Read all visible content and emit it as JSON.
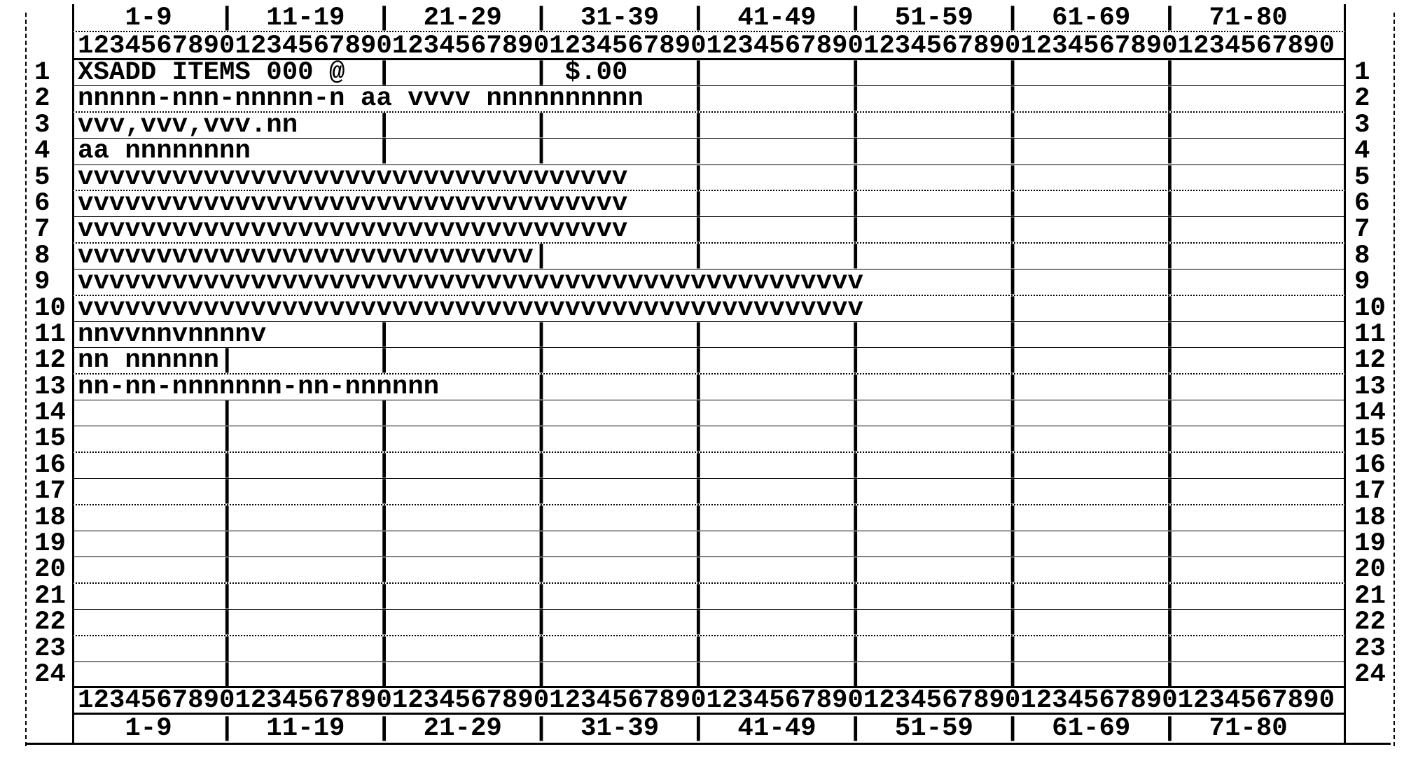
{
  "colors": {
    "ink": "#000000",
    "paper": "#ffffff"
  },
  "header": {
    "column_ranges": "   1-9   |  11-19  |  21-29  |  31-39  |  41-49  |  51-59  |  61-69  |  71-80   ",
    "ruler": "12345678901234567890123456789012345678901234567890123456789012345678901234567890"
  },
  "footer": {
    "ruler": "12345678901234567890123456789012345678901234567890123456789012345678901234567890",
    "column_ranges": "   1-9   |  11-19  |  21-29  |  31-39  |  41-49  |  51-59  |  61-69  |  71-80   "
  },
  "screen": {
    "rows": [
      {
        "num": "1",
        "text": "XSADD ITEMS 000 @  |         | $.00    |         |         |         |          "
      },
      {
        "num": "2",
        "text": "nnnnn-nnn-nnnnn-n aa vvvv nnnnnnnnnn   |         |         |         |          "
      },
      {
        "num": "3",
        "text": "vvv,vvv,vvv.nn     |         |         |         |         |         |          "
      },
      {
        "num": "4",
        "text": "aa nnnnnnnn        |         |         |         |         |         |          "
      },
      {
        "num": "5",
        "text": "vvvvvvvvvvvvvvvvvvvvvvvvvvvvvvvvvvv    |         |         |         |          "
      },
      {
        "num": "6",
        "text": "vvvvvvvvvvvvvvvvvvvvvvvvvvvvvvvvvvv    |         |         |         |          "
      },
      {
        "num": "7",
        "text": "vvvvvvvvvvvvvvvvvvvvvvvvvvvvvvvvvvv    |         |         |         |          "
      },
      {
        "num": "8",
        "text": "vvvvvvvvvvvvvvvvvvvvvvvvvvvvv|         |         |         |         |          "
      },
      {
        "num": "9",
        "text": "vvvvvvvvvvvvvvvvvvvvvvvvvvvvvvvvvvvvvvvvvvvvvvvvvv         |         |          "
      },
      {
        "num": "10",
        "text": "vvvvvvvvvvvvvvvvvvvvvvvvvvvvvvvvvvvvvvvvvvvvvvvvvv         |         |          "
      },
      {
        "num": "11",
        "text": "nnvvnnvnnnnv       |         |         |         |         |         |          "
      },
      {
        "num": "12",
        "text": "nn nnnnnn|         |         |         |         |         |         |          "
      },
      {
        "num": "13",
        "text": "nn-nn-nnnnnnn-nn-nnnnnn      |         |         |         |         |          "
      },
      {
        "num": "14",
        "text": "         |         |         |         |         |         |         |          "
      },
      {
        "num": "15",
        "text": "         |         |         |         |         |         |         |          "
      },
      {
        "num": "16",
        "text": "         |         |         |         |         |         |         |          "
      },
      {
        "num": "17",
        "text": "         |         |         |         |         |         |         |          "
      },
      {
        "num": "18",
        "text": "         |         |         |         |         |         |         |          "
      },
      {
        "num": "19",
        "text": "         |         |         |         |         |         |         |          "
      },
      {
        "num": "20",
        "text": "         |         |         |         |         |         |         |          "
      },
      {
        "num": "21",
        "text": "         |         |         |         |         |         |         |          "
      },
      {
        "num": "22",
        "text": "         |         |         |         |         |         |         |          "
      },
      {
        "num": "23",
        "text": "         |         |         |         |         |         |         |          "
      },
      {
        "num": "24",
        "text": "         |         |         |         |         |         |         |          "
      }
    ]
  }
}
